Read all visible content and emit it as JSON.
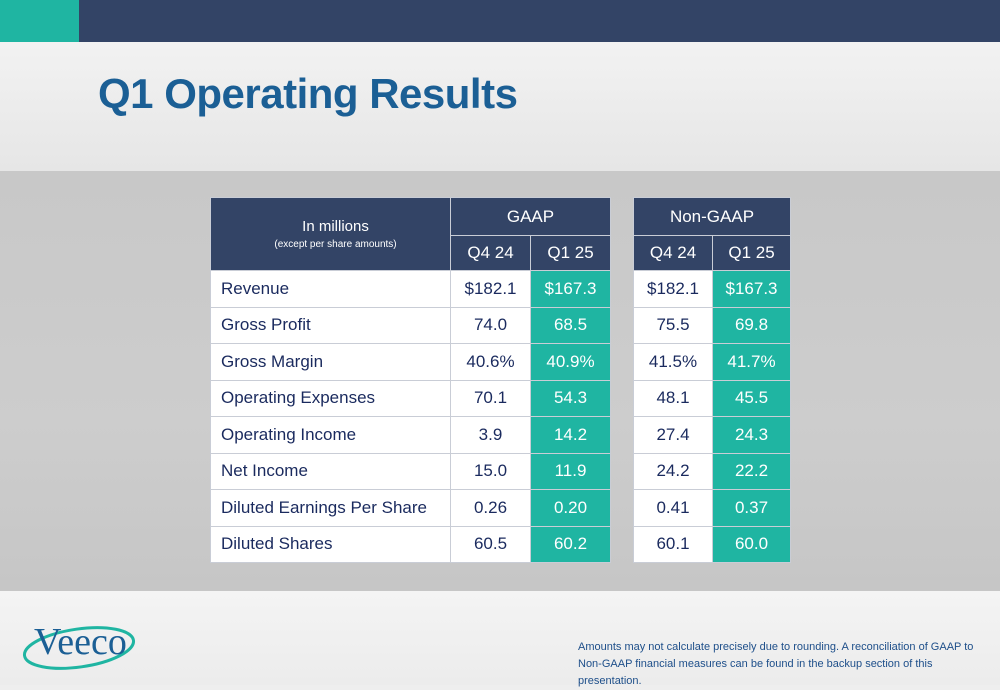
{
  "title": "Q1 Operating Results",
  "colors": {
    "navy": "#334466",
    "teal": "#1fb5a2",
    "title_blue": "#1b5f95",
    "text_navy": "#1a2a5e"
  },
  "table": {
    "label_main": "In millions",
    "label_sub": "(except per share amounts)",
    "groups": [
      "GAAP",
      "Non-GAAP"
    ],
    "periods": [
      "Q4 24",
      "Q1 25"
    ],
    "rows": [
      {
        "metric": "Revenue",
        "gaap": [
          "$182.1",
          "$167.3"
        ],
        "non_gaap": [
          "$182.1",
          "$167.3"
        ]
      },
      {
        "metric": "Gross Profit",
        "gaap": [
          "74.0",
          "68.5"
        ],
        "non_gaap": [
          "75.5",
          "69.8"
        ]
      },
      {
        "metric": "Gross Margin",
        "gaap": [
          "40.6%",
          "40.9%"
        ],
        "non_gaap": [
          "41.5%",
          "41.7%"
        ]
      },
      {
        "metric": "Operating Expenses",
        "gaap": [
          "70.1",
          "54.3"
        ],
        "non_gaap": [
          "48.1",
          "45.5"
        ]
      },
      {
        "metric": "Operating Income",
        "gaap": [
          "3.9",
          "14.2"
        ],
        "non_gaap": [
          "27.4",
          "24.3"
        ]
      },
      {
        "metric": "Net Income",
        "gaap": [
          "15.0",
          "11.9"
        ],
        "non_gaap": [
          "24.2",
          "22.2"
        ]
      },
      {
        "metric": "Diluted Earnings Per Share",
        "gaap": [
          "0.26",
          "0.20"
        ],
        "non_gaap": [
          "0.41",
          "0.37"
        ]
      },
      {
        "metric": "Diluted Shares",
        "gaap": [
          "60.5",
          "60.2"
        ],
        "non_gaap": [
          "60.1",
          "60.0"
        ]
      }
    ]
  },
  "logo_text": "Veeco",
  "footnote": "Amounts may not calculate precisely due to rounding.  A reconciliation of GAAP to Non-GAAP financial measures can be found in the backup section of this presentation."
}
